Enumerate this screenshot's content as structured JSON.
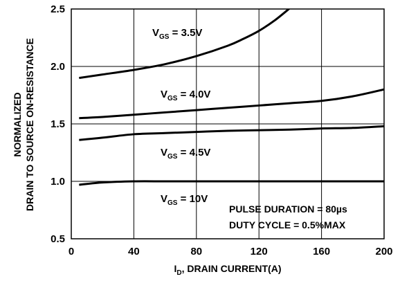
{
  "chart_data": {
    "type": "line",
    "title": "",
    "xlabel_main": "I",
    "xlabel_sub": "D",
    "xlabel_rest": ", DRAIN CURRENT(A)",
    "ylabel_line1": "NORMALIZED",
    "ylabel_line2": "DRAIN TO SOURCE ON-RESISTANCE",
    "xlim": [
      0,
      200
    ],
    "ylim": [
      0.5,
      2.5
    ],
    "x_ticks": [
      0,
      40,
      80,
      120,
      160,
      200
    ],
    "x_tick_labels": [
      "0",
      "40",
      "80",
      "120",
      "160",
      "200"
    ],
    "y_ticks": [
      0.5,
      1.0,
      1.5,
      2.0,
      2.5
    ],
    "y_tick_labels": [
      "0.5",
      "1.0",
      "1.5",
      "2.0",
      "2.5"
    ],
    "grid": true,
    "series": [
      {
        "name": "3.5V",
        "label_prefix": "V",
        "label_sub": "GS",
        "label_value": "= 3.5V",
        "x": [
          5,
          20,
          40,
          60,
          80,
          100,
          110,
          120,
          130,
          140
        ],
        "y": [
          1.9,
          1.93,
          1.97,
          2.02,
          2.09,
          2.18,
          2.24,
          2.31,
          2.4,
          2.51
        ]
      },
      {
        "name": "4.0V",
        "label_prefix": "V",
        "label_sub": "GS",
        "label_value": "= 4.0V",
        "x": [
          5,
          20,
          40,
          60,
          80,
          100,
          120,
          140,
          160,
          180,
          200
        ],
        "y": [
          1.55,
          1.56,
          1.58,
          1.6,
          1.62,
          1.64,
          1.66,
          1.68,
          1.7,
          1.74,
          1.8
        ]
      },
      {
        "name": "4.5V",
        "label_prefix": "V",
        "label_sub": "GS",
        "label_value": "= 4.5V",
        "x": [
          5,
          20,
          40,
          60,
          80,
          100,
          120,
          140,
          160,
          180,
          200
        ],
        "y": [
          1.36,
          1.38,
          1.41,
          1.42,
          1.43,
          1.44,
          1.445,
          1.45,
          1.46,
          1.465,
          1.48
        ]
      },
      {
        "name": "10V",
        "label_prefix": "V",
        "label_sub": "GS",
        "label_value": "= 10V",
        "x": [
          5,
          20,
          40,
          60,
          80,
          100,
          120,
          140,
          160,
          180,
          200
        ],
        "y": [
          0.97,
          0.99,
          1.0,
          1.0,
          1.0,
          1.0,
          1.0,
          1.0,
          1.0,
          1.0,
          1.0
        ]
      }
    ],
    "annotations": [
      "PULSE DURATION = 80µs",
      "DUTY CYCLE = 0.5%MAX"
    ]
  }
}
